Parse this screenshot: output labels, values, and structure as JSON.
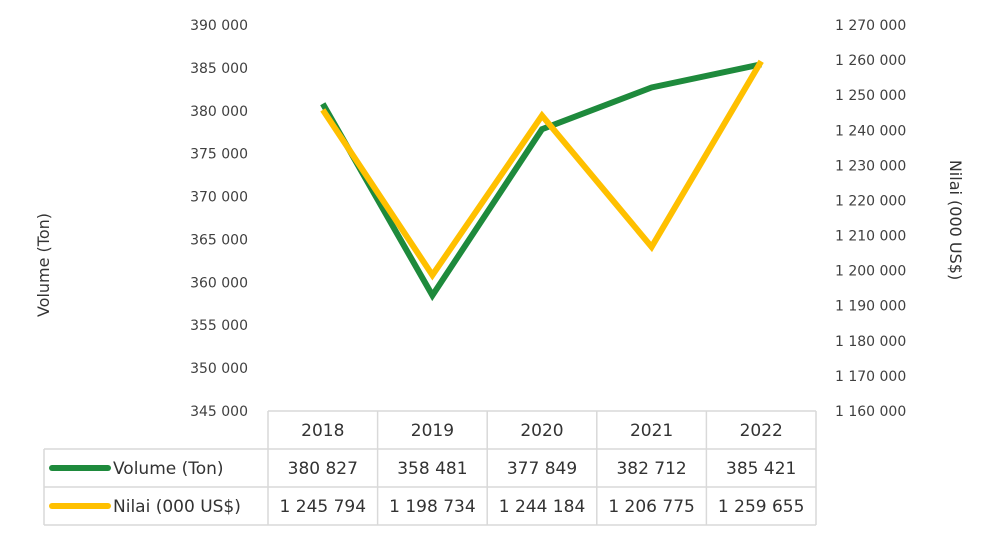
{
  "chart_data": {
    "type": "line",
    "categories": [
      "2018",
      "2019",
      "2020",
      "2021",
      "2022"
    ],
    "series": [
      {
        "name": "Volume (Ton)",
        "axis": "left",
        "color": "#1e8a3c",
        "values": [
          380827,
          358481,
          377849,
          382712,
          385421
        ],
        "labels": [
          "380 827",
          "358 481",
          "377 849",
          "382 712",
          "385 421"
        ]
      },
      {
        "name": "Nilai (000 US$)",
        "axis": "right",
        "color": "#ffc000",
        "values": [
          1245794,
          1198734,
          1244184,
          1206775,
          1259655
        ],
        "labels": [
          "1 245 794",
          "1 198 734",
          "1 244 184",
          "1 206 775",
          "1 259 655"
        ]
      }
    ],
    "y_left": {
      "label": "Volume (Ton)",
      "range": [
        345000,
        390000
      ],
      "ticks": [
        "390 000",
        "385 000",
        "380 000",
        "375 000",
        "370 000",
        "365 000",
        "360 000",
        "355 000",
        "350 000",
        "345 000"
      ]
    },
    "y_right": {
      "label": "Nilai (000 US$)",
      "range": [
        1160000,
        1270000
      ],
      "ticks": [
        "1 270 000",
        "1 260 000",
        "1 250 000",
        "1 240 000",
        "1 230 000",
        "1 220 000",
        "1 210 000",
        "1 200 000",
        "1 190 000",
        "1 180 000",
        "1 170 000",
        "1 160 000"
      ]
    },
    "grid": false,
    "legend": "data table below chart"
  }
}
